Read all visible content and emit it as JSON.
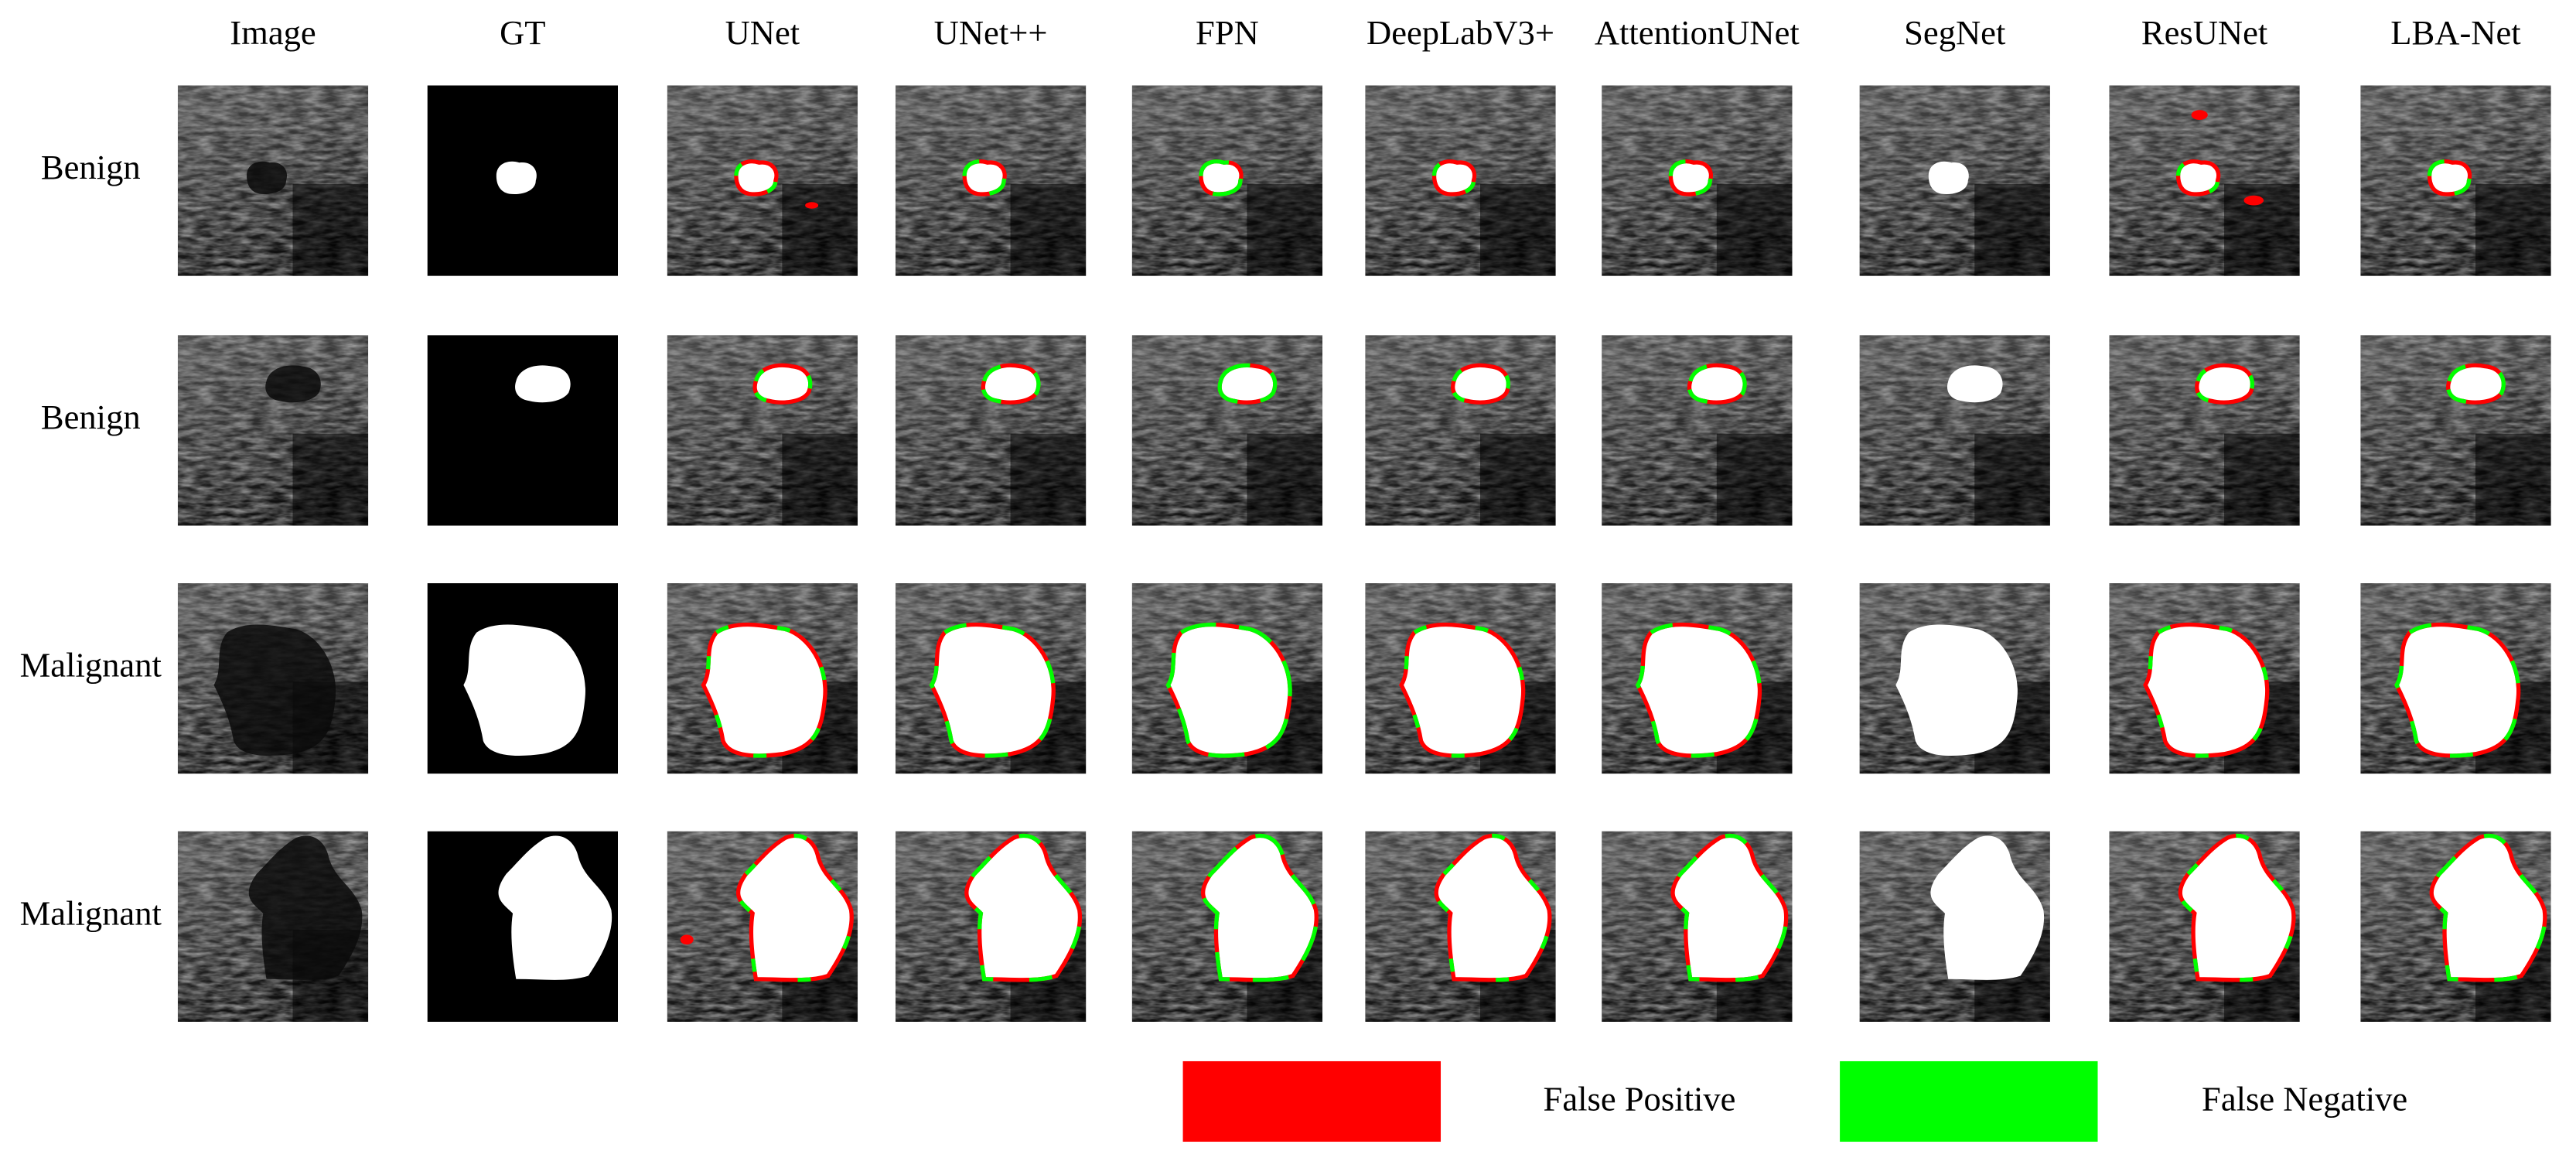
{
  "columns": [
    "Image",
    "GT",
    "UNet",
    "UNet++",
    "FPN",
    "DeepLabV3+",
    "AttentionUNet",
    "SegNet",
    "ResUNet",
    "LBA-Net"
  ],
  "rows": [
    "Benign",
    "Benign",
    "Malignant",
    "Malignant"
  ],
  "legend": [
    {
      "label": "False Positive",
      "color": "#ff0000"
    },
    {
      "label": "False Negative",
      "color": "#00ff00"
    }
  ]
}
